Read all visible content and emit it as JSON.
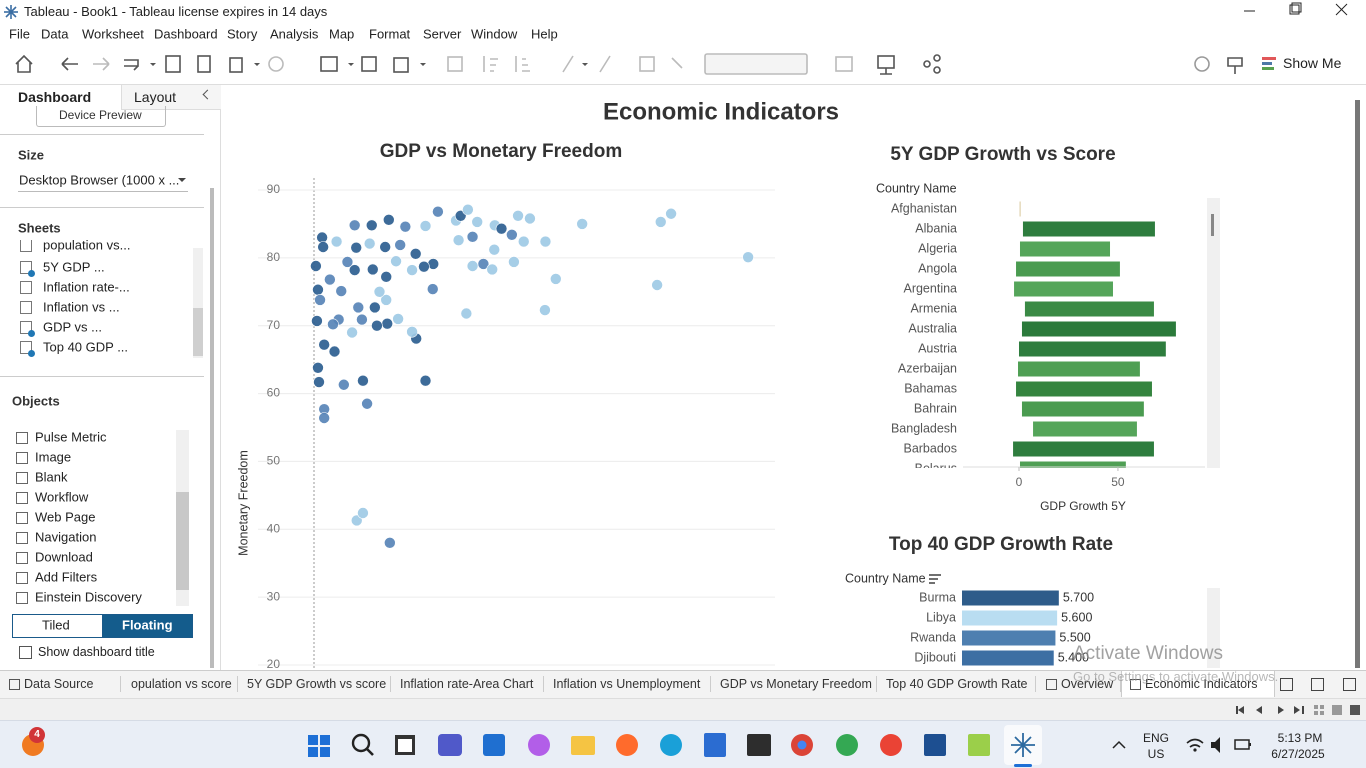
{
  "window": {
    "title": "Tableau - Book1 - Tableau license expires in 14 days"
  },
  "menu": [
    "File",
    "Data",
    "Worksheet",
    "Dashboard",
    "Story",
    "Analysis",
    "Map",
    "Format",
    "Server",
    "Window",
    "Help"
  ],
  "toolbar": {
    "show_me": "Show Me"
  },
  "left_panel": {
    "tabs": [
      "Dashboard",
      "Layout"
    ],
    "device_preview": "Device Preview",
    "size_heading": "Size",
    "size_value": "Desktop Browser (1000 x ...",
    "sheets_heading": "Sheets",
    "sheets": [
      "population vs...",
      "5Y GDP ...",
      "Inflation rate-...",
      "Inflation vs ...",
      "GDP vs ...",
      "Top 40 GDP ..."
    ],
    "objects_heading": "Objects",
    "objects": [
      "Pulse Metric",
      "Image",
      "Blank",
      "Workflow",
      "Web Page",
      "Navigation",
      "Download",
      "Add Filters",
      "Einstein Discovery"
    ],
    "layout_buttons": [
      "Tiled",
      "Floating"
    ],
    "show_title": "Show dashboard title"
  },
  "dashboard": {
    "title": "Economic Indicators"
  },
  "chart_data": [
    {
      "type": "scatter",
      "title": "GDP vs Monetary Freedom",
      "y_label": "Monetary Freedom",
      "x": [
        12.4,
        12.6,
        11.2,
        11.6,
        12.0,
        11.4,
        12.8,
        11.6,
        11.8,
        12.8,
        12.8,
        16.6,
        20.3,
        21.1,
        19.1,
        20.3,
        25.5,
        32.4,
        30.6,
        29.8,
        25.0,
        23.0,
        27.1,
        16.1,
        18.7,
        19.0,
        22.0,
        25.3,
        18.7,
        24.6,
        27.5,
        28.5,
        32.4,
        34.8,
        38.3,
        39.2,
        40.6,
        42.4,
        38.8,
        41.5,
        45.8,
        47.1,
        50.3,
        52.6,
        49.1,
        51.4,
        55.6,
        62.7,
        45.7,
        49.5,
        43.6,
        41.5,
        45.3,
        33.9,
        32.1,
        30.5,
        26.7,
        29.8,
        33.8,
        24.8,
        22.2,
        22.6,
        19.4,
        20.1,
        15.6,
        14.5,
        18.2,
        14.8,
        57.6,
        55.5,
        40.3,
        77.2,
        77.9,
        79.9,
        94.8,
        24.8,
        23.5,
        17.3,
        13.9,
        15.2,
        21.6
      ],
      "values": [
        83.0,
        81.6,
        78.8,
        75.3,
        73.8,
        70.7,
        67.2,
        63.8,
        61.7,
        57.7,
        56.4,
        61.3,
        61.9,
        58.5,
        41.3,
        42.4,
        38.0,
        61.9,
        68.1,
        69.1,
        70.3,
        70.0,
        71.0,
        75.1,
        78.2,
        81.5,
        84.8,
        85.6,
        84.8,
        81.6,
        81.9,
        84.6,
        84.7,
        86.8,
        85.5,
        86.2,
        87.1,
        85.3,
        82.6,
        83.1,
        84.8,
        84.3,
        86.2,
        85.8,
        83.4,
        82.4,
        82.4,
        85.0,
        81.2,
        79.4,
        79.1,
        78.8,
        78.3,
        79.1,
        78.7,
        80.6,
        79.5,
        78.2,
        75.4,
        77.2,
        78.3,
        72.7,
        72.7,
        70.9,
        70.9,
        70.2,
        69.0,
        66.2,
        76.9,
        72.3,
        71.8,
        76.0,
        85.3,
        86.5,
        80.1,
        73.8,
        75.0,
        79.4,
        76.8,
        82.4,
        82.1
      ],
      "colors": [
        "#2d5f91",
        "#2d5f91",
        "#2d5f91",
        "#2d5f91",
        "#5885b8",
        "#2d5f91",
        "#2d5f91",
        "#2d5f91",
        "#2d5f91",
        "#5885b8",
        "#5885b8",
        "#5885b8",
        "#2d5f91",
        "#5885b8",
        "#9fcae6",
        "#9fcae6",
        "#5885b8",
        "#2d5f91",
        "#2d5f91",
        "#9fcae6",
        "#2d5f91",
        "#2d5f91",
        "#9fcae6",
        "#5885b8",
        "#2d5f91",
        "#2d5f91",
        "#2d5f91",
        "#2d5f91",
        "#5885b8",
        "#2d5f91",
        "#5885b8",
        "#5885b8",
        "#9fcae6",
        "#5885b8",
        "#9fcae6",
        "#2d5f91",
        "#9fcae6",
        "#9fcae6",
        "#9fcae6",
        "#5885b8",
        "#9fcae6",
        "#2d5f91",
        "#9fcae6",
        "#9fcae6",
        "#5885b8",
        "#9fcae6",
        "#9fcae6",
        "#9fcae6",
        "#9fcae6",
        "#9fcae6",
        "#5885b8",
        "#9fcae6",
        "#9fcae6",
        "#2d5f91",
        "#2d5f91",
        "#2d5f91",
        "#9fcae6",
        "#9fcae6",
        "#5885b8",
        "#2d5f91",
        "#2d5f91",
        "#2d5f91",
        "#5885b8",
        "#5885b8",
        "#5885b8",
        "#5885b8",
        "#9fcae6",
        "#2d5f91",
        "#9fcae6",
        "#9fcae6",
        "#9fcae6",
        "#9fcae6",
        "#9fcae6",
        "#9fcae6",
        "#9fcae6",
        "#9fcae6",
        "#9fcae6",
        "#5885b8",
        "#5885b8",
        "#9fcae6",
        "#9fcae6"
      ],
      "xlim": [
        0,
        100
      ],
      "ylim": [
        20,
        90
      ],
      "yticks": [
        20,
        30,
        40,
        50,
        60,
        70,
        80,
        90
      ],
      "grid": true
    },
    {
      "type": "range_bar",
      "title": "5Y GDP Growth vs Score",
      "category_label": "Country Name",
      "x_label": "GDP Growth 5Y",
      "categories": [
        "Afghanistan",
        "Albania",
        "Algeria",
        "Angola",
        "Argentina",
        "Armenia",
        "Australia",
        "Austria",
        "Azerbaijan",
        "Bahamas",
        "Bahrain",
        "Bangladesh",
        "Barbados",
        "Belarus"
      ],
      "low": [
        0.3,
        2.0,
        0.5,
        -1.5,
        -2.5,
        3.0,
        1.5,
        0,
        -0.5,
        -1.5,
        1.5,
        7.1,
        -3.0,
        0.5
      ],
      "values": [
        0.8,
        68.7,
        46.0,
        51.0,
        47.5,
        68.2,
        79.3,
        74.2,
        61.1,
        67.2,
        63.1,
        59.6,
        68.2,
        54.0
      ],
      "colors": [
        "#d8c79a",
        "#2e7d3e",
        "#55a55a",
        "#4a9b50",
        "#55a55a",
        "#3a8a45",
        "#2b7a3b",
        "#2e7d3e",
        "#4f9f54",
        "#34843f",
        "#4a9b50",
        "#55a55a",
        "#2e7d3e",
        "#4f9f54"
      ],
      "xlim": [
        -28.3,
        94
      ],
      "xticks": [
        0,
        50
      ]
    },
    {
      "type": "bar_h",
      "title": "Top 40 GDP Growth Rate",
      "category_label": "Country Name",
      "categories": [
        "Burma",
        "Libya",
        "Rwanda",
        "Djibouti"
      ],
      "values": [
        5.7,
        5.6,
        5.5,
        5.4
      ],
      "value_labels": [
        "5.700",
        "5.600",
        "5.500",
        "5.400"
      ],
      "colors": [
        "#2e5c8a",
        "#b9ddf1",
        "#4e7fb0",
        "#3d6fa3"
      ],
      "xlim": [
        0,
        14.6
      ]
    }
  ],
  "sheet_tabs": [
    "Data Source",
    "opulation vs score",
    "5Y GDP Growth vs score",
    "Inflation rate-Area Chart",
    "Inflation vs Unemployment",
    "GDP vs Monetary Freedom",
    "Top 40 GDP Growth Rate",
    "Overview",
    "Economic Indicators"
  ],
  "watermark": {
    "line1": "Activate Windows",
    "line2": "Go to Settings to activate Windows."
  },
  "taskbar": {
    "badge": 4,
    "language": "ENG",
    "region": "US",
    "time": "5:13 PM",
    "date": "6/27/2025"
  }
}
